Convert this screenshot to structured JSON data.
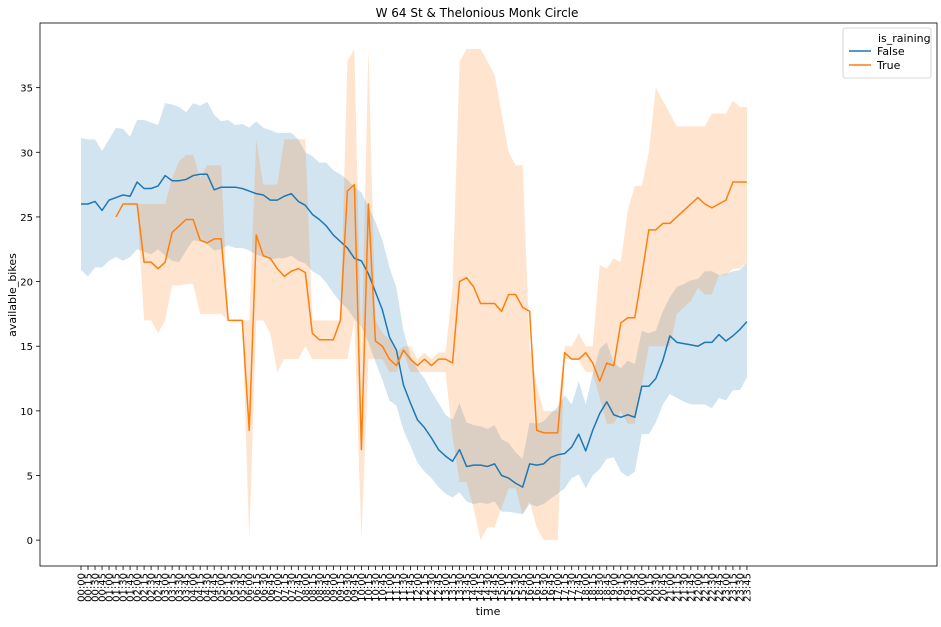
{
  "chart_data": {
    "type": "line",
    "title": "W 64 St & Thelonious Monk Circle",
    "xlabel": "time",
    "ylabel": "available_bikes",
    "ylim": [
      -2,
      40
    ],
    "yticks": [
      0,
      5,
      10,
      15,
      20,
      25,
      30,
      35
    ],
    "grid": false,
    "legend": {
      "placement": "top-right",
      "title": "is_raining",
      "entries": [
        "False",
        "True"
      ]
    },
    "categories": [
      "00:00",
      "00:15",
      "00:30",
      "00:45",
      "01:00",
      "01:15",
      "01:30",
      "01:45",
      "02:00",
      "02:15",
      "02:30",
      "02:45",
      "03:00",
      "03:15",
      "03:30",
      "03:45",
      "04:00",
      "04:15",
      "04:30",
      "04:45",
      "05:00",
      "05:15",
      "05:30",
      "05:45",
      "06:00",
      "06:15",
      "06:30",
      "06:45",
      "07:00",
      "07:15",
      "07:30",
      "07:45",
      "08:00",
      "08:15",
      "08:30",
      "08:45",
      "09:00",
      "09:15",
      "09:30",
      "09:45",
      "10:00",
      "10:15",
      "10:30",
      "10:45",
      "11:00",
      "11:15",
      "11:30",
      "11:45",
      "12:00",
      "12:15",
      "12:30",
      "12:45",
      "13:00",
      "13:15",
      "13:30",
      "13:45",
      "14:00",
      "14:15",
      "14:30",
      "14:45",
      "15:00",
      "15:15",
      "15:30",
      "15:45",
      "16:00",
      "16:15",
      "16:30",
      "16:45",
      "17:00",
      "17:15",
      "17:30",
      "17:45",
      "18:00",
      "18:15",
      "18:30",
      "18:45",
      "19:00",
      "19:15",
      "19:30",
      "19:45",
      "20:00",
      "20:15",
      "20:30",
      "20:45",
      "21:00",
      "21:15",
      "21:30",
      "21:45",
      "22:00",
      "22:15",
      "22:30",
      "22:45",
      "23:00",
      "23:15",
      "23:30",
      "23:45"
    ],
    "series": [
      {
        "name": "False",
        "color": "#1f77b4",
        "values": [
          26.0,
          26.0,
          26.2,
          25.5,
          26.3,
          26.5,
          26.7,
          26.6,
          27.7,
          27.2,
          27.2,
          27.4,
          28.2,
          27.8,
          27.8,
          27.9,
          28.2,
          28.3,
          28.3,
          27.1,
          27.3,
          27.3,
          27.3,
          27.2,
          27.0,
          26.8,
          26.7,
          26.3,
          26.3,
          26.6,
          26.8,
          26.2,
          25.9,
          25.2,
          24.8,
          24.3,
          23.6,
          23.1,
          22.6,
          21.8,
          21.6,
          20.6,
          19.2,
          17.8,
          15.7,
          14.7,
          12.0,
          10.6,
          9.3,
          8.7,
          7.9,
          7.0,
          6.5,
          6.1,
          7.0,
          5.7,
          5.8,
          5.8,
          5.7,
          5.9,
          5.0,
          4.8,
          4.4,
          4.1,
          5.9,
          5.8,
          5.9,
          6.4,
          6.6,
          6.7,
          7.2,
          8.2,
          6.9,
          8.5,
          9.8,
          10.7,
          9.7,
          9.5,
          9.7,
          9.5,
          11.9,
          11.9,
          12.5,
          13.9,
          15.8,
          15.3,
          15.2,
          15.1,
          15.0,
          15.3,
          15.3,
          15.9,
          15.4,
          15.8,
          16.3,
          16.9
        ],
        "ci_lower": [
          20.9,
          20.4,
          21.1,
          21.1,
          21.6,
          21.9,
          21.6,
          21.9,
          22.5,
          22.3,
          22.1,
          22.5,
          22.0,
          21.6,
          21.5,
          22.4,
          23.2,
          23.1,
          22.9,
          22.4,
          22.5,
          22.8,
          22.6,
          22.6,
          22.4,
          22.1,
          21.9,
          21.7,
          21.8,
          21.8,
          22.0,
          21.6,
          21.4,
          20.8,
          20.5,
          19.9,
          19.1,
          18.4,
          17.9,
          17.1,
          16.5,
          15.3,
          13.8,
          12.4,
          10.8,
          10.4,
          8.5,
          7.3,
          6.0,
          5.3,
          4.8,
          4.1,
          3.6,
          3.3,
          3.7,
          3.0,
          2.8,
          2.9,
          2.8,
          3.0,
          2.2,
          2.2,
          2.1,
          2.0,
          2.8,
          2.6,
          2.8,
          3.2,
          3.6,
          4.0,
          4.8,
          5.1,
          4.0,
          5.0,
          5.5,
          6.3,
          6.4,
          5.3,
          4.9,
          5.3,
          8.2,
          8.2,
          9.1,
          10.5,
          11.3,
          11.0,
          10.7,
          10.5,
          10.5,
          10.5,
          10.2,
          11.0,
          10.8,
          11.6,
          11.6,
          12.6
        ],
        "ci_upper": [
          31.1,
          31.0,
          31.0,
          30.1,
          31.0,
          31.9,
          31.8,
          31.2,
          32.5,
          32.5,
          32.3,
          32.1,
          33.8,
          33.7,
          33.5,
          33.1,
          33.8,
          33.6,
          33.9,
          32.9,
          32.4,
          32.5,
          32.1,
          32.2,
          31.9,
          32.4,
          31.9,
          31.7,
          31.5,
          31.5,
          31.5,
          31.0,
          30.0,
          29.7,
          29.2,
          29.2,
          28.6,
          28.3,
          27.9,
          27.3,
          26.9,
          25.8,
          24.6,
          23.2,
          21.1,
          19.5,
          16.2,
          14.3,
          13.2,
          12.5,
          11.5,
          10.6,
          9.7,
          9.3,
          10.6,
          9.1,
          8.9,
          8.8,
          8.6,
          8.9,
          7.8,
          7.5,
          6.8,
          6.3,
          9.1,
          9.0,
          9.2,
          9.8,
          10.3,
          11.2,
          10.5,
          12.3,
          10.5,
          12.9,
          14.8,
          15.3,
          13.7,
          13.3,
          13.9,
          13.6,
          16.2,
          16.0,
          16.2,
          17.7,
          18.8,
          19.6,
          19.8,
          20.1,
          20.2,
          20.8,
          20.8,
          20.5,
          20.6,
          20.8,
          20.9,
          21.5
        ]
      },
      {
        "name": "True",
        "color": "#ff7f0e",
        "values": [
          null,
          null,
          null,
          null,
          null,
          25.0,
          26.0,
          26.0,
          26.0,
          21.5,
          21.5,
          21.0,
          21.5,
          23.8,
          24.3,
          24.8,
          24.8,
          23.2,
          23.0,
          23.3,
          23.3,
          17.0,
          17.0,
          17.0,
          8.5,
          23.6,
          22.0,
          21.8,
          21.0,
          20.4,
          20.8,
          21.0,
          20.7,
          16.0,
          15.5,
          15.5,
          15.5,
          17.0,
          27.0,
          27.5,
          7.0,
          26.0,
          15.4,
          15.0,
          14.0,
          13.5,
          14.7,
          14.0,
          13.5,
          14.0,
          13.5,
          14.0,
          14.0,
          13.7,
          20.0,
          20.3,
          19.6,
          18.3,
          18.3,
          18.3,
          17.7,
          19.0,
          19.0,
          18.0,
          17.7,
          8.5,
          8.3,
          8.3,
          8.3,
          14.5,
          14.0,
          14.0,
          14.5,
          13.7,
          12.3,
          13.7,
          13.5,
          16.8,
          17.2,
          17.2,
          20.5,
          24.0,
          24.0,
          24.5,
          24.5,
          25.0,
          25.5,
          26.0,
          26.5,
          26.0,
          25.7,
          26.0,
          26.3,
          27.7,
          27.7,
          27.7
        ],
        "ci_lower": [
          null,
          null,
          null,
          null,
          null,
          25.0,
          26.0,
          26.0,
          26.0,
          17.0,
          17.0,
          16.0,
          17.0,
          19.7,
          19.7,
          19.8,
          19.8,
          17.5,
          17.5,
          17.5,
          17.5,
          17.0,
          17.0,
          17.0,
          0.0,
          17.0,
          17.0,
          16.0,
          13.0,
          14.0,
          14.0,
          14.0,
          15.0,
          14.0,
          14.0,
          14.0,
          14.0,
          14.0,
          14.0,
          17.0,
          0.0,
          14.0,
          14.0,
          14.0,
          13.0,
          13.0,
          14.5,
          13.0,
          13.0,
          13.0,
          13.0,
          13.0,
          13.0,
          8.0,
          4.5,
          4.5,
          2.5,
          0.0,
          1.0,
          1.0,
          2.5,
          4.0,
          4.0,
          2.0,
          3.0,
          1.0,
          0.0,
          0.0,
          0.0,
          14.0,
          14.0,
          14.0,
          13.0,
          13.0,
          11.0,
          9.0,
          9.0,
          10.0,
          9.0,
          9.0,
          12.0,
          15.0,
          15.0,
          15.0,
          15.0,
          17.5,
          18.0,
          18.5,
          19.5,
          19.0,
          19.0,
          20.5,
          20.5,
          21.0,
          21.0,
          21.5
        ],
        "ci_upper": [
          null,
          null,
          null,
          null,
          null,
          25.0,
          26.0,
          26.0,
          26.0,
          26.0,
          26.0,
          26.0,
          26.0,
          28.0,
          29.3,
          29.8,
          29.8,
          28.0,
          29.0,
          29.0,
          29.0,
          17.0,
          17.0,
          17.0,
          17.0,
          31.0,
          27.5,
          27.5,
          27.5,
          31.0,
          31.0,
          31.0,
          31.0,
          17.0,
          17.0,
          17.0,
          17.0,
          17.0,
          37.0,
          38.0,
          14.0,
          38.0,
          17.0,
          16.0,
          15.5,
          14.5,
          15.0,
          15.0,
          14.0,
          14.5,
          14.0,
          14.5,
          14.5,
          19.5,
          37.0,
          38.0,
          38.0,
          38.0,
          37.0,
          36.0,
          33.0,
          30.0,
          29.0,
          29.0,
          15.0,
          12.0,
          10.0,
          10.0,
          10.0,
          15.0,
          15.0,
          16.0,
          15.0,
          15.0,
          21.3,
          21.0,
          21.8,
          21.5,
          25.5,
          27.4,
          27.4,
          30.0,
          35.0,
          34.0,
          33.0,
          32.0,
          32.0,
          32.0,
          32.0,
          32.0,
          33.0,
          33.0,
          33.0,
          34.0,
          33.5,
          33.5
        ]
      }
    ]
  }
}
